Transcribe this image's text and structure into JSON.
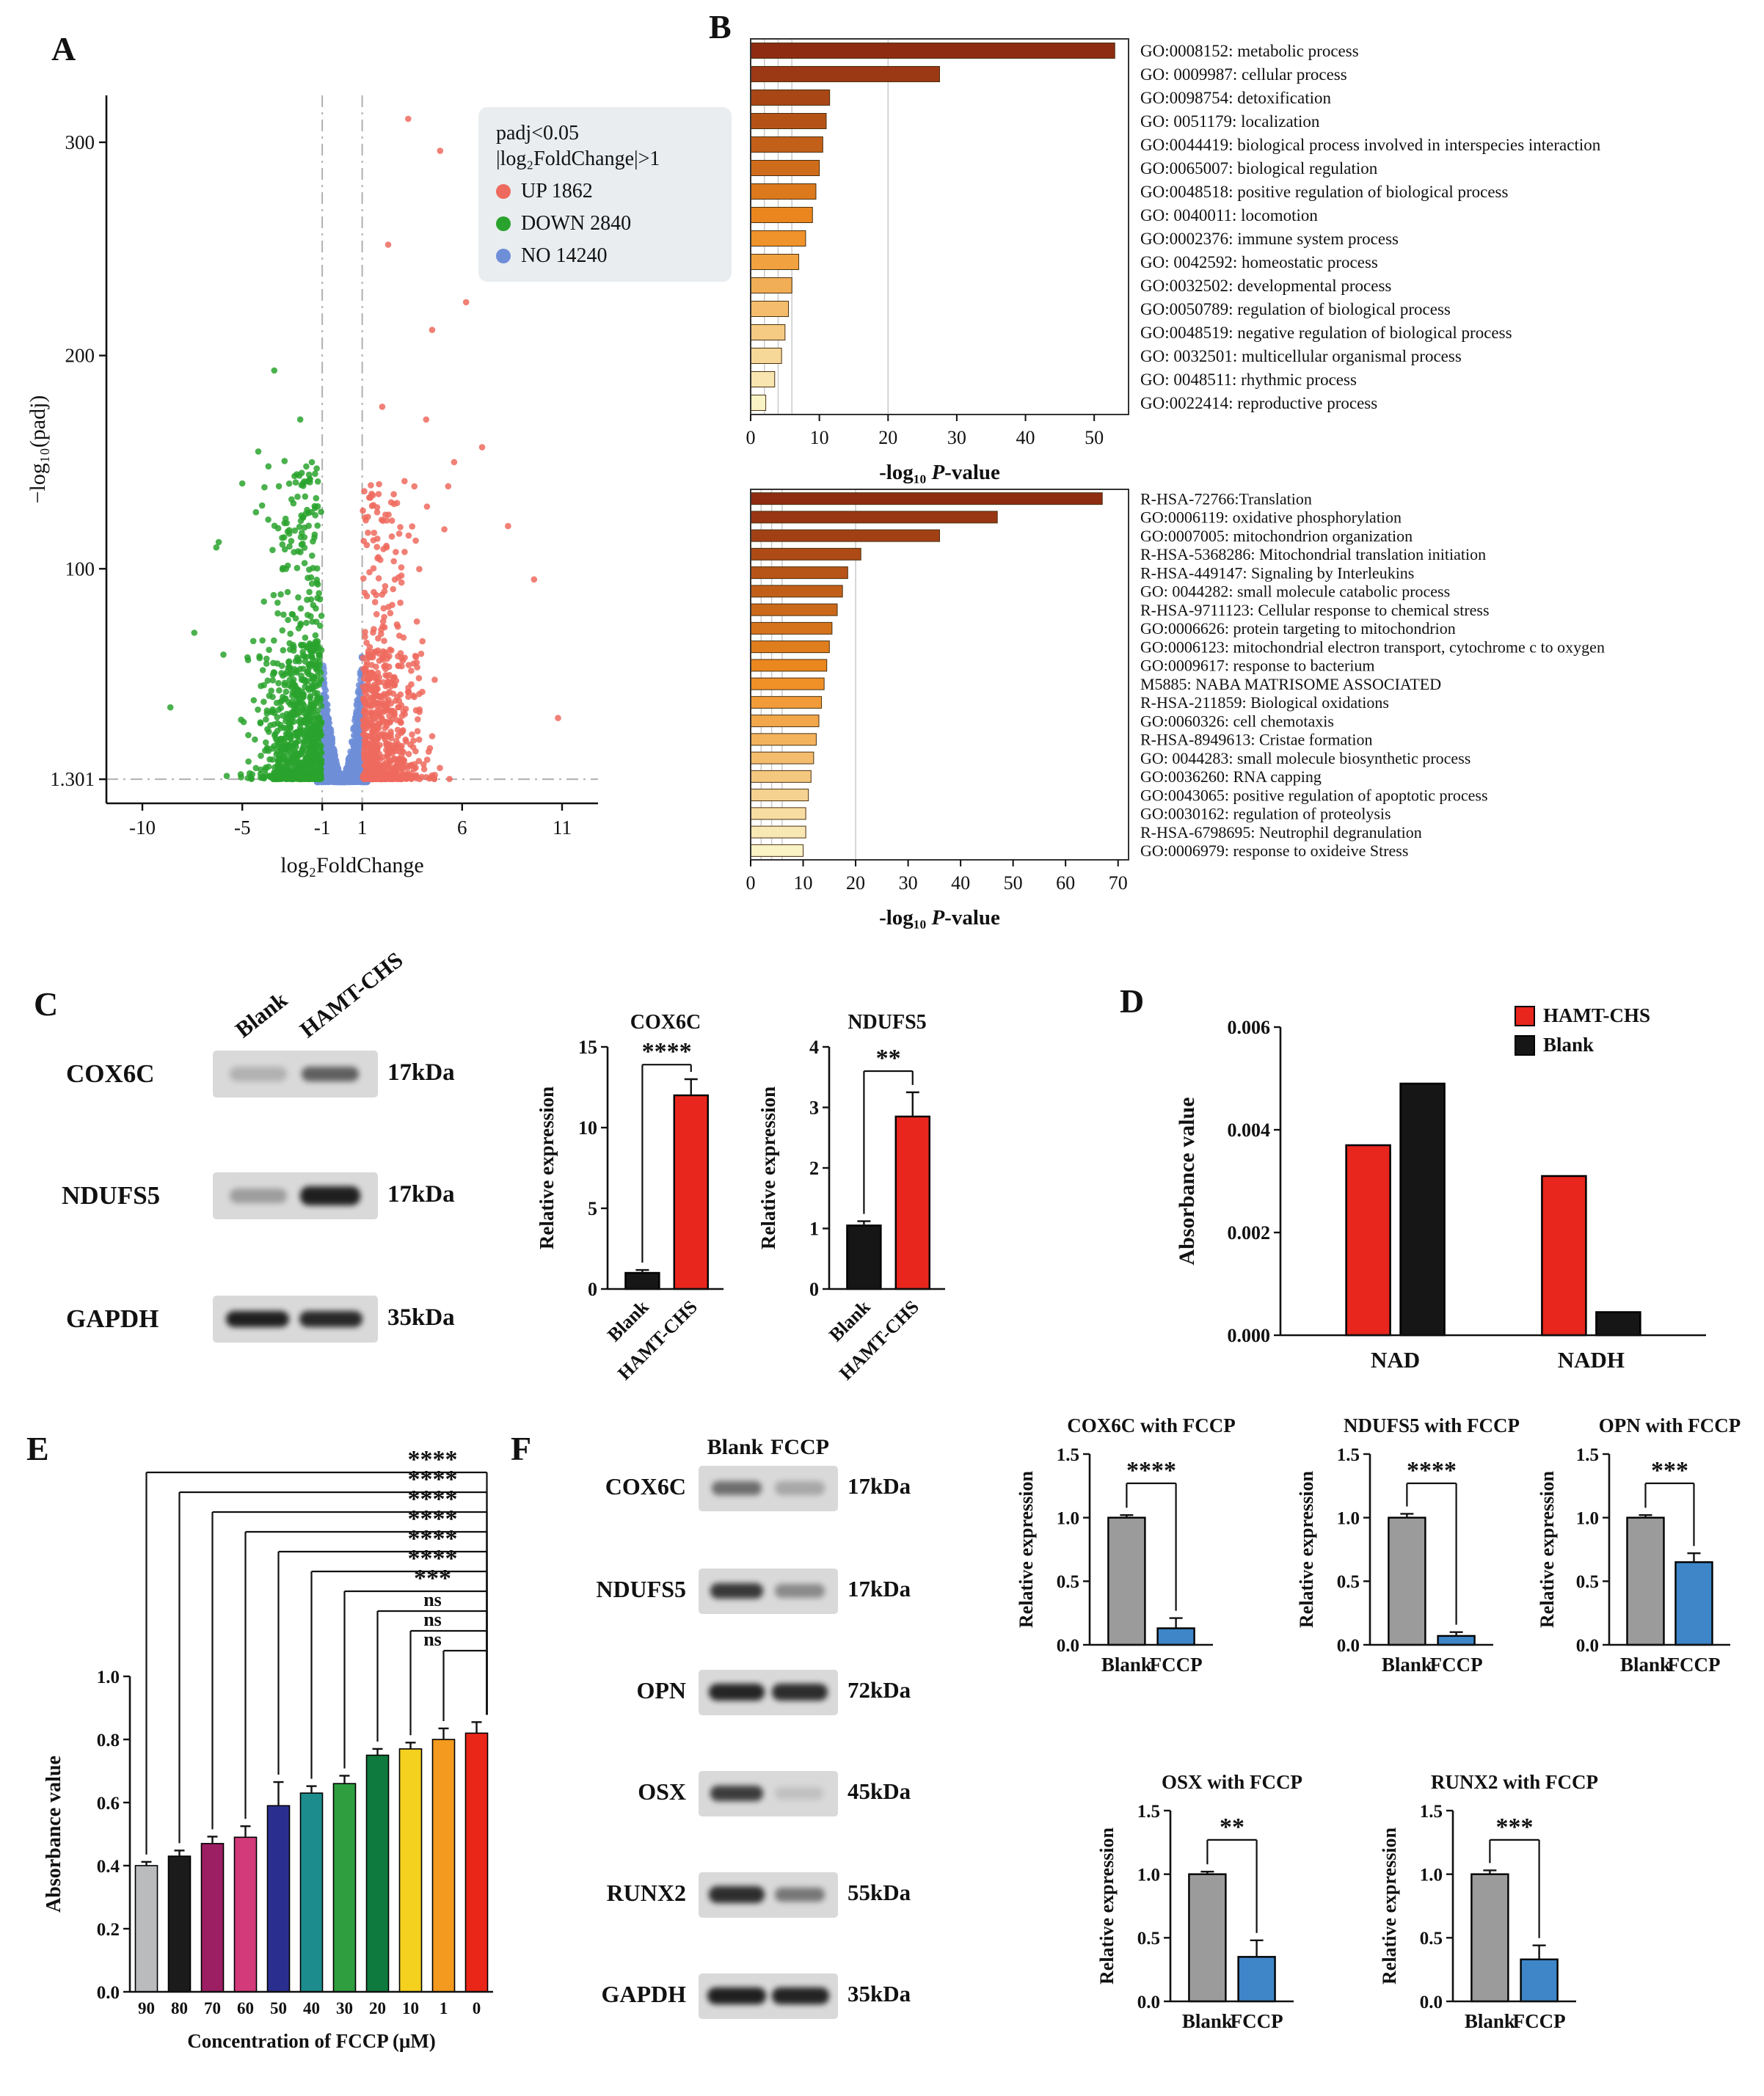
{
  "figure": {
    "panel_labels": [
      "A",
      "B",
      "C",
      "D",
      "E",
      "F"
    ]
  },
  "panelA": {
    "legend_line1": "padj<0.05",
    "legend_line2": "|log₂FoldChange|>1",
    "legend_items": [
      {
        "label": "UP 1862",
        "color": "#ef6a5e"
      },
      {
        "label": "DOWN 2840",
        "color": "#2aa32e"
      },
      {
        "label": "NO 14240",
        "color": "#6e8ed8"
      }
    ]
  },
  "panelC": {
    "col_headers": [
      "Blank",
      "HAMT-CHS"
    ],
    "rows": [
      {
        "protein": "COX6C",
        "kda": "17kDa",
        "bands": [
          0.2,
          0.62
        ]
      },
      {
        "protein": "NDUFS5",
        "kda": "17kDa",
        "bands": [
          0.3,
          0.95
        ]
      },
      {
        "protein": "GAPDH",
        "kda": "35kDa",
        "bands": [
          0.95,
          0.9
        ]
      }
    ]
  },
  "panelF": {
    "col_headers": [
      "Blank",
      "FCCP"
    ],
    "rows": [
      {
        "protein": "COX6C",
        "kda": "17kDa",
        "bands": [
          0.55,
          0.25
        ]
      },
      {
        "protein": "NDUFS5",
        "kda": "17kDa",
        "bands": [
          0.82,
          0.4
        ]
      },
      {
        "protein": "OPN",
        "kda": "72kDa",
        "bands": [
          0.92,
          0.88
        ]
      },
      {
        "protein": "OSX",
        "kda": "45kDa",
        "bands": [
          0.8,
          0.12
        ]
      },
      {
        "protein": "RUNX2",
        "kda": "55kDa",
        "bands": [
          0.88,
          0.5
        ]
      },
      {
        "protein": "GAPDH",
        "kda": "35kDa",
        "bands": [
          0.95,
          0.93
        ]
      }
    ]
  },
  "chart_data": [
    {
      "id": "volcano",
      "type": "scatter",
      "xlabel": "log₂FoldChange",
      "ylabel": "−log₁₀(padj)",
      "xlim": [
        -11.8,
        12.8
      ],
      "ylim": [
        -10,
        322
      ],
      "xticks": [
        -10,
        -5,
        -1,
        1,
        6,
        11
      ],
      "yticks": [
        1.301,
        100,
        200,
        300
      ],
      "threshold_x": [
        -1,
        1
      ],
      "threshold_y": 1.301,
      "groups": [
        {
          "name": "UP",
          "count": 1862,
          "color": "#ef6a5e",
          "n_points": 780
        },
        {
          "name": "DOWN",
          "count": 2840,
          "color": "#2aa32e",
          "n_points": 950
        },
        {
          "name": "NO",
          "count": 14240,
          "color": "#6e8ed8",
          "n_points": 1500
        }
      ],
      "red_outliers": [
        [
          3.3,
          311
        ],
        [
          4.9,
          296
        ],
        [
          2.3,
          252
        ],
        [
          6.2,
          225
        ],
        [
          4.5,
          212
        ],
        [
          2.0,
          176
        ],
        [
          4.2,
          170
        ],
        [
          7.0,
          157
        ],
        [
          5.6,
          150
        ],
        [
          8.3,
          120
        ],
        [
          9.6,
          95
        ],
        [
          10.8,
          30
        ]
      ],
      "green_outliers": [
        [
          -3.4,
          193
        ],
        [
          -2.1,
          170
        ],
        [
          -4.2,
          155
        ],
        [
          -1.8,
          148
        ],
        [
          -5.0,
          140
        ],
        [
          -6.3,
          110
        ],
        [
          -7.4,
          70
        ],
        [
          -8.6,
          35
        ]
      ]
    },
    {
      "id": "go_process",
      "type": "hbar",
      "xlabel": "-log₁₀ P-value",
      "xlim": [
        0,
        55
      ],
      "xticks": [
        0,
        10,
        20,
        30,
        40,
        50
      ],
      "gridlines": [
        2,
        4,
        6,
        20
      ],
      "color_scale": [
        "#8E2C12",
        "#EF8C1F",
        "#F9F3C5"
      ],
      "bars": [
        {
          "label": "GO:0008152: metabolic process",
          "value": 53
        },
        {
          "label": "GO: 0009987: cellular process",
          "value": 27.5
        },
        {
          "label": "GO:0098754: detoxification",
          "value": 11.5
        },
        {
          "label": "GO: 0051179: localization",
          "value": 11
        },
        {
          "label": "GO:0044419: biological process involved in interspecies interaction",
          "value": 10.5
        },
        {
          "label": "GO:0065007: biological regulation",
          "value": 10
        },
        {
          "label": "GO:0048518: positive regulation of biological process",
          "value": 9.5
        },
        {
          "label": "GO: 0040011: locomotion",
          "value": 9
        },
        {
          "label": "GO:0002376: immune system process",
          "value": 8
        },
        {
          "label": "GO: 0042592: homeostatic process",
          "value": 7
        },
        {
          "label": "GO:0032502: developmental process",
          "value": 6
        },
        {
          "label": "GO:0050789: regulation of biological process",
          "value": 5.5
        },
        {
          "label": "GO:0048519: negative regulation of biological process",
          "value": 5
        },
        {
          "label": "GO: 0032501: multicellular organismal process",
          "value": 4.5
        },
        {
          "label": "GO: 0048511: rhythmic process",
          "value": 3.5
        },
        {
          "label": "GO:0022414: reproductive process",
          "value": 2.2
        }
      ]
    },
    {
      "id": "go_pathway",
      "type": "hbar",
      "xlabel": "-log₁₀ P-value",
      "xlim": [
        0,
        72
      ],
      "xticks": [
        0,
        10,
        20,
        30,
        40,
        50,
        60,
        70
      ],
      "gridlines": [
        2,
        4,
        6,
        20
      ],
      "color_scale": [
        "#8E2C12",
        "#EF8C1F",
        "#F9F3C5"
      ],
      "bars": [
        {
          "label": "R-HSA-72766:Translation",
          "value": 67
        },
        {
          "label": "GO:0006119: oxidative phosphorylation",
          "value": 47
        },
        {
          "label": "GO:0007005: mitochondrion organization",
          "value": 36
        },
        {
          "label": "R-HSA-5368286: Mitochondrial translation initiation",
          "value": 21
        },
        {
          "label": "R-HSA-449147: Signaling by Interleukins",
          "value": 18.5
        },
        {
          "label": "GO: 0044282: small molecule catabolic process",
          "value": 17.5
        },
        {
          "label": "R-HSA-9711123: Cellular response to chemical stress",
          "value": 16.5
        },
        {
          "label": "GO:0006626: protein targeting to mitochondrion",
          "value": 15.5
        },
        {
          "label": "GO:0006123: mitochondrial electron transport, cytochrome c to oxygen",
          "value": 15
        },
        {
          "label": "GO:0009617: response to bacterium",
          "value": 14.5
        },
        {
          "label": "M5885: NABA MATRISOME ASSOCIATED",
          "value": 14
        },
        {
          "label": "R-HSA-211859: Biological oxidations",
          "value": 13.5
        },
        {
          "label": "GO:0060326: cell chemotaxis",
          "value": 13
        },
        {
          "label": "R-HSA-8949613: Cristae formation",
          "value": 12.5
        },
        {
          "label": "GO: 0044283: small molecule biosynthetic process",
          "value": 12
        },
        {
          "label": "GO:0036260: RNA capping",
          "value": 11.5
        },
        {
          "label": "GO:0043065: positive regulation of apoptotic process",
          "value": 11
        },
        {
          "label": "GO:0030162: regulation of proteolysis",
          "value": 10.5
        },
        {
          "label": "R-HSA-6798695: Neutrophil degranulation",
          "value": 10.5
        },
        {
          "label": "GO:0006979: response to oxideive Stress",
          "value": 10
        }
      ]
    },
    {
      "id": "cox6c_hamt",
      "type": "vbar",
      "title": "COX6C",
      "ylabel": "Relative expression",
      "ylim": [
        0,
        15
      ],
      "yticks": [
        "0",
        "5",
        "10",
        "15"
      ],
      "categories": [
        "Blank",
        "HAMT-CHS"
      ],
      "x_rotate": true,
      "series": [
        {
          "colors": [
            "#161616",
            "#e8261d"
          ],
          "values": [
            1.0,
            12.0
          ],
          "errors": [
            0.18,
            1.0
          ]
        }
      ],
      "brackets": [
        {
          "i1": 0,
          "i2": 1,
          "y": 13.9,
          "label": "****"
        }
      ]
    },
    {
      "id": "ndufs5_hamt",
      "type": "vbar",
      "title": "NDUFS5",
      "ylabel": "Relative expression",
      "ylim": [
        0,
        4
      ],
      "yticks": [
        "0",
        "1",
        "2",
        "3",
        "4"
      ],
      "categories": [
        "Blank",
        "HAMT-CHS"
      ],
      "x_rotate": true,
      "series": [
        {
          "colors": [
            "#161616",
            "#e8261d"
          ],
          "values": [
            1.05,
            2.85
          ],
          "errors": [
            0.07,
            0.4
          ]
        }
      ],
      "brackets": [
        {
          "i1": 0,
          "i2": 1,
          "y": 3.6,
          "label": "**"
        }
      ]
    },
    {
      "id": "nad_nadh",
      "type": "vbar",
      "ylabel": "Absorbance value",
      "ylim": [
        0,
        0.006
      ],
      "yticks": [
        "0.000",
        "0.002",
        "0.004",
        "0.006"
      ],
      "categories": [
        "NAD",
        "NADH"
      ],
      "series": [
        {
          "name": "HAMT-CHS",
          "color": "#e8261d",
          "values": [
            0.0037,
            0.0031
          ]
        },
        {
          "name": "Blank",
          "color": "#161616",
          "values": [
            0.0049,
            0.00045
          ]
        }
      ],
      "legend": [
        {
          "label": "HAMT-CHS",
          "color": "#e8261d"
        },
        {
          "label": "Blank",
          "color": "#161616"
        }
      ]
    },
    {
      "id": "fccp_dose",
      "type": "vbar",
      "ylabel": "Absorbance value",
      "xlabel": "Concentration of FCCP (μM)",
      "ylim": [
        0,
        1.0
      ],
      "yticks": [
        "0.0",
        "0.2",
        "0.4",
        "0.6",
        "0.8",
        "1.0"
      ],
      "categories": [
        "90",
        "80",
        "70",
        "60",
        "50",
        "40",
        "30",
        "20",
        "10",
        "1",
        "0"
      ],
      "series": [
        {
          "colors": [
            "#b9bbbd",
            "#1b1b1b",
            "#9c1f63",
            "#d23a7a",
            "#2a2f8f",
            "#1d8c8c",
            "#2f9e3f",
            "#0f7a3d",
            "#f4d01f",
            "#f49a1f",
            "#ea2618"
          ],
          "values": [
            0.4,
            0.43,
            0.47,
            0.49,
            0.59,
            0.63,
            0.66,
            0.75,
            0.77,
            0.8,
            0.82
          ],
          "errors": [
            0.012,
            0.018,
            0.022,
            0.035,
            0.075,
            0.022,
            0.025,
            0.02,
            0.02,
            0.035,
            0.035
          ]
        }
      ],
      "brackets": [
        {
          "i1": 0,
          "i2": 10,
          "level": 0,
          "label": "****"
        },
        {
          "i1": 1,
          "i2": 10,
          "level": 1,
          "label": "****"
        },
        {
          "i1": 2,
          "i2": 10,
          "level": 2,
          "label": "****"
        },
        {
          "i1": 3,
          "i2": 10,
          "level": 3,
          "label": "****"
        },
        {
          "i1": 4,
          "i2": 10,
          "level": 4,
          "label": "****"
        },
        {
          "i1": 5,
          "i2": 10,
          "level": 5,
          "label": "****"
        },
        {
          "i1": 6,
          "i2": 10,
          "level": 6,
          "label": "***"
        },
        {
          "i1": 7,
          "i2": 10,
          "level": 7,
          "label": "ns"
        },
        {
          "i1": 8,
          "i2": 10,
          "level": 8,
          "label": "ns"
        },
        {
          "i1": 9,
          "i2": 10,
          "level": 9,
          "label": "ns"
        }
      ]
    },
    {
      "id": "cox6c_fccp",
      "type": "vbar",
      "title": "COX6C with FCCP",
      "ylabel": "Relative expression",
      "ylim": [
        0,
        1.5
      ],
      "yticks": [
        "0.0",
        "0.5",
        "1.0",
        "1.5"
      ],
      "categories": [
        "Blank",
        "FCCP"
      ],
      "series": [
        {
          "colors": [
            "#9b9b9b",
            "#3e86c8"
          ],
          "values": [
            1.0,
            0.13
          ],
          "errors": [
            0.02,
            0.08
          ]
        }
      ],
      "brackets": [
        {
          "i1": 0,
          "i2": 1,
          "y": 1.27,
          "label": "****"
        }
      ]
    },
    {
      "id": "ndufs5_fccp",
      "type": "vbar",
      "title": "NDUFS5 with FCCP",
      "ylabel": "Relative expression",
      "ylim": [
        0,
        1.5
      ],
      "yticks": [
        "0.0",
        "0.5",
        "1.0",
        "1.5"
      ],
      "categories": [
        "Blank",
        "FCCP"
      ],
      "series": [
        {
          "colors": [
            "#9b9b9b",
            "#3e86c8"
          ],
          "values": [
            1.0,
            0.07
          ],
          "errors": [
            0.03,
            0.03
          ]
        }
      ],
      "brackets": [
        {
          "i1": 0,
          "i2": 1,
          "y": 1.27,
          "label": "****"
        }
      ]
    },
    {
      "id": "opn_fccp",
      "type": "vbar",
      "title": "OPN with FCCP",
      "ylabel": "Relative expression",
      "ylim": [
        0,
        1.5
      ],
      "yticks": [
        "0.0",
        "0.5",
        "1.0",
        "1.5"
      ],
      "categories": [
        "Blank",
        "FCCP"
      ],
      "series": [
        {
          "colors": [
            "#9b9b9b",
            "#3e86c8"
          ],
          "values": [
            1.0,
            0.65
          ],
          "errors": [
            0.02,
            0.07
          ]
        }
      ],
      "brackets": [
        {
          "i1": 0,
          "i2": 1,
          "y": 1.27,
          "label": "***"
        }
      ]
    },
    {
      "id": "osx_fccp",
      "type": "vbar",
      "title": "OSX with FCCP",
      "ylabel": "Relative expression",
      "ylim": [
        0,
        1.5
      ],
      "yticks": [
        "0.0",
        "0.5",
        "1.0",
        "1.5"
      ],
      "categories": [
        "Blank",
        "FCCP"
      ],
      "series": [
        {
          "colors": [
            "#9b9b9b",
            "#3e86c8"
          ],
          "values": [
            1.0,
            0.35
          ],
          "errors": [
            0.02,
            0.13
          ]
        }
      ],
      "brackets": [
        {
          "i1": 0,
          "i2": 1,
          "y": 1.27,
          "label": "**"
        }
      ]
    },
    {
      "id": "runx2_fccp",
      "type": "vbar",
      "title": "RUNX2 with FCCP",
      "ylabel": "Relative expression",
      "ylim": [
        0,
        1.5
      ],
      "yticks": [
        "0.0",
        "0.5",
        "1.0",
        "1.5"
      ],
      "categories": [
        "Blank",
        "FCCP"
      ],
      "series": [
        {
          "colors": [
            "#9b9b9b",
            "#3e86c8"
          ],
          "values": [
            1.0,
            0.33
          ],
          "errors": [
            0.03,
            0.11
          ]
        }
      ],
      "brackets": [
        {
          "i1": 0,
          "i2": 1,
          "y": 1.27,
          "label": "***"
        }
      ]
    }
  ]
}
